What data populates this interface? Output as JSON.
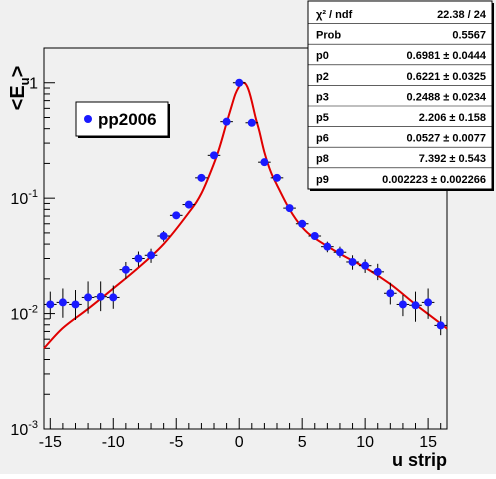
{
  "chart_data": {
    "type": "scatter",
    "title": "",
    "xlabel": "u strip",
    "ylabel_main": "<E",
    "ylabel_sub": "u",
    "ylabel_end": ">",
    "xlim": [
      -15.5,
      16.5
    ],
    "ylim": [
      0.001,
      2.0
    ],
    "yscale": "log",
    "grid": false,
    "x_ticks": [
      {
        "value": -15,
        "label": "-15"
      },
      {
        "value": -10,
        "label": "-10"
      },
      {
        "value": -5,
        "label": "-5"
      },
      {
        "value": 0,
        "label": "0"
      },
      {
        "value": 5,
        "label": "5"
      },
      {
        "value": 10,
        "label": "10"
      },
      {
        "value": 15,
        "label": "15"
      }
    ],
    "y_ticks": [
      {
        "value": 1,
        "base": "1",
        "exp": ""
      },
      {
        "value": 0.1,
        "base": "10",
        "exp": "-1"
      },
      {
        "value": 0.01,
        "base": "10",
        "exp": "-2"
      },
      {
        "value": 0.001,
        "base": "10",
        "exp": "-3"
      }
    ],
    "series": [
      {
        "name": "pp2006",
        "marker_color": "#1a1aff",
        "points": [
          {
            "x": -15,
            "y": 0.012,
            "lo": 0.009,
            "hi": 0.0155
          },
          {
            "x": -14,
            "y": 0.0125,
            "lo": 0.0092,
            "hi": 0.0165
          },
          {
            "x": -13,
            "y": 0.012,
            "lo": 0.0088,
            "hi": 0.016
          },
          {
            "x": -12,
            "y": 0.0138,
            "lo": 0.01,
            "hi": 0.019
          },
          {
            "x": -11,
            "y": 0.014,
            "lo": 0.0105,
            "hi": 0.019
          },
          {
            "x": -10,
            "y": 0.0138,
            "lo": 0.011,
            "hi": 0.0175
          },
          {
            "x": -9,
            "y": 0.024,
            "lo": 0.02,
            "hi": 0.028
          },
          {
            "x": -8,
            "y": 0.03,
            "lo": 0.0255,
            "hi": 0.0345
          },
          {
            "x": -7,
            "y": 0.032,
            "lo": 0.0275,
            "hi": 0.0365
          },
          {
            "x": -6,
            "y": 0.047,
            "lo": 0.042,
            "hi": 0.052
          },
          {
            "x": -5,
            "y": 0.071,
            "lo": 0.066,
            "hi": 0.076
          },
          {
            "x": -4,
            "y": 0.088,
            "lo": 0.083,
            "hi": 0.093
          },
          {
            "x": -3,
            "y": 0.15,
            "lo": 0.145,
            "hi": 0.155
          },
          {
            "x": -2,
            "y": 0.235,
            "lo": 0.228,
            "hi": 0.242
          },
          {
            "x": -1,
            "y": 0.46,
            "lo": 0.45,
            "hi": 0.47
          },
          {
            "x": 0,
            "y": 1.0,
            "lo": 0.99,
            "hi": 1.01
          },
          {
            "x": 1,
            "y": 0.45,
            "lo": 0.44,
            "hi": 0.46
          },
          {
            "x": 2,
            "y": 0.205,
            "lo": 0.199,
            "hi": 0.211
          },
          {
            "x": 3,
            "y": 0.15,
            "lo": 0.145,
            "hi": 0.155
          },
          {
            "x": 4,
            "y": 0.082,
            "lo": 0.078,
            "hi": 0.086
          },
          {
            "x": 5,
            "y": 0.06,
            "lo": 0.056,
            "hi": 0.064
          },
          {
            "x": 6,
            "y": 0.047,
            "lo": 0.0435,
            "hi": 0.0505
          },
          {
            "x": 7,
            "y": 0.038,
            "lo": 0.034,
            "hi": 0.042
          },
          {
            "x": 8,
            "y": 0.034,
            "lo": 0.0305,
            "hi": 0.038
          },
          {
            "x": 9,
            "y": 0.028,
            "lo": 0.024,
            "hi": 0.032
          },
          {
            "x": 10,
            "y": 0.026,
            "lo": 0.0225,
            "hi": 0.0295
          },
          {
            "x": 11,
            "y": 0.023,
            "lo": 0.0195,
            "hi": 0.027
          },
          {
            "x": 12,
            "y": 0.015,
            "lo": 0.012,
            "hi": 0.0185
          },
          {
            "x": 13,
            "y": 0.012,
            "lo": 0.0095,
            "hi": 0.0145
          },
          {
            "x": 14,
            "y": 0.0118,
            "lo": 0.0085,
            "hi": 0.0155
          },
          {
            "x": 15,
            "y": 0.0125,
            "lo": 0.009,
            "hi": 0.0165
          },
          {
            "x": 16,
            "y": 0.0079,
            "lo": 0.0065,
            "hi": 0.0095
          }
        ]
      }
    ],
    "fit_curve": {
      "color": "#e00000",
      "x": [
        -15.5,
        -14,
        -12,
        -10,
        -8,
        -6,
        -4,
        -3,
        -2,
        -1.5,
        -1,
        -0.6,
        -0.3,
        0,
        0.2,
        0.35,
        0.5,
        0.65,
        0.8,
        1.0,
        1.3,
        1.6,
        2,
        2.5,
        3,
        4,
        5,
        6,
        8,
        10,
        12,
        14,
        16,
        16.5
      ],
      "y": [
        0.005,
        0.0075,
        0.011,
        0.0165,
        0.025,
        0.04,
        0.075,
        0.11,
        0.2,
        0.29,
        0.45,
        0.63,
        0.8,
        0.93,
        0.99,
        1.0,
        0.98,
        0.92,
        0.83,
        0.69,
        0.5,
        0.38,
        0.25,
        0.17,
        0.13,
        0.08,
        0.056,
        0.045,
        0.033,
        0.025,
        0.018,
        0.012,
        0.0082,
        0.0074
      ]
    },
    "legend": {
      "label": "pp2006",
      "placement": "upper-left"
    },
    "stats_box": {
      "placement": "top-right",
      "rows": [
        {
          "label": "χ² / ndf",
          "value": "22.38 / 24"
        },
        {
          "label": "Prob",
          "value": "0.5567"
        },
        {
          "label": "p0",
          "value": "0.6981 ± 0.0444"
        },
        {
          "label": "p2",
          "value": "0.6221 ± 0.0325"
        },
        {
          "label": "p3",
          "value": "0.2488 ± 0.0234"
        },
        {
          "label": "p5",
          "value": "2.206 ± 0.158"
        },
        {
          "label": "p6",
          "value": "0.0527 ± 0.0077"
        },
        {
          "label": "p8",
          "value": "7.392 ± 0.543"
        },
        {
          "label": "p9",
          "value": "0.002223 ± 0.002266"
        }
      ]
    }
  }
}
